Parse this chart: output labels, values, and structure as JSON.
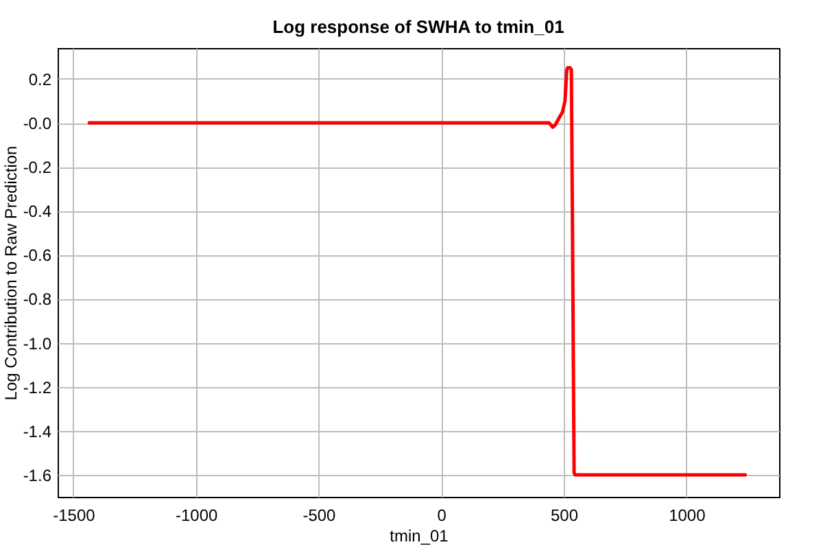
{
  "chart_data": {
    "type": "line",
    "title": "Log response of SWHA to tmin_01",
    "xlabel": "tmin_01",
    "ylabel": "Log Contribution to Raw Prediction",
    "series": [
      {
        "color": "#ff0000",
        "x": [
          -1435,
          400,
          440,
          455,
          465,
          480,
          495,
          505,
          512,
          516,
          526,
          531,
          535,
          542,
          546,
          1240
        ],
        "values": [
          0,
          0,
          0,
          -0.02,
          -0.01,
          0.02,
          0.05,
          0.1,
          0.24,
          0.25,
          0.25,
          0.24,
          -0.4,
          -1.59,
          -1.6,
          -1.6
        ]
      }
    ],
    "xlim": [
      -1564,
      1378
    ],
    "ylim": [
      -1.7,
      0.34
    ],
    "xticks": [
      -1500,
      -1000,
      -500,
      0,
      500,
      1000
    ],
    "yticks": [
      0.2,
      {
        "value": 0,
        "label": "-0.0"
      },
      -0.2,
      -0.4,
      -0.6,
      -0.8,
      {
        "value": -1,
        "label": "-1.0"
      },
      -1.2,
      -1.4,
      -1.6
    ],
    "grid": true,
    "line_style": "solid",
    "marker": "none"
  }
}
